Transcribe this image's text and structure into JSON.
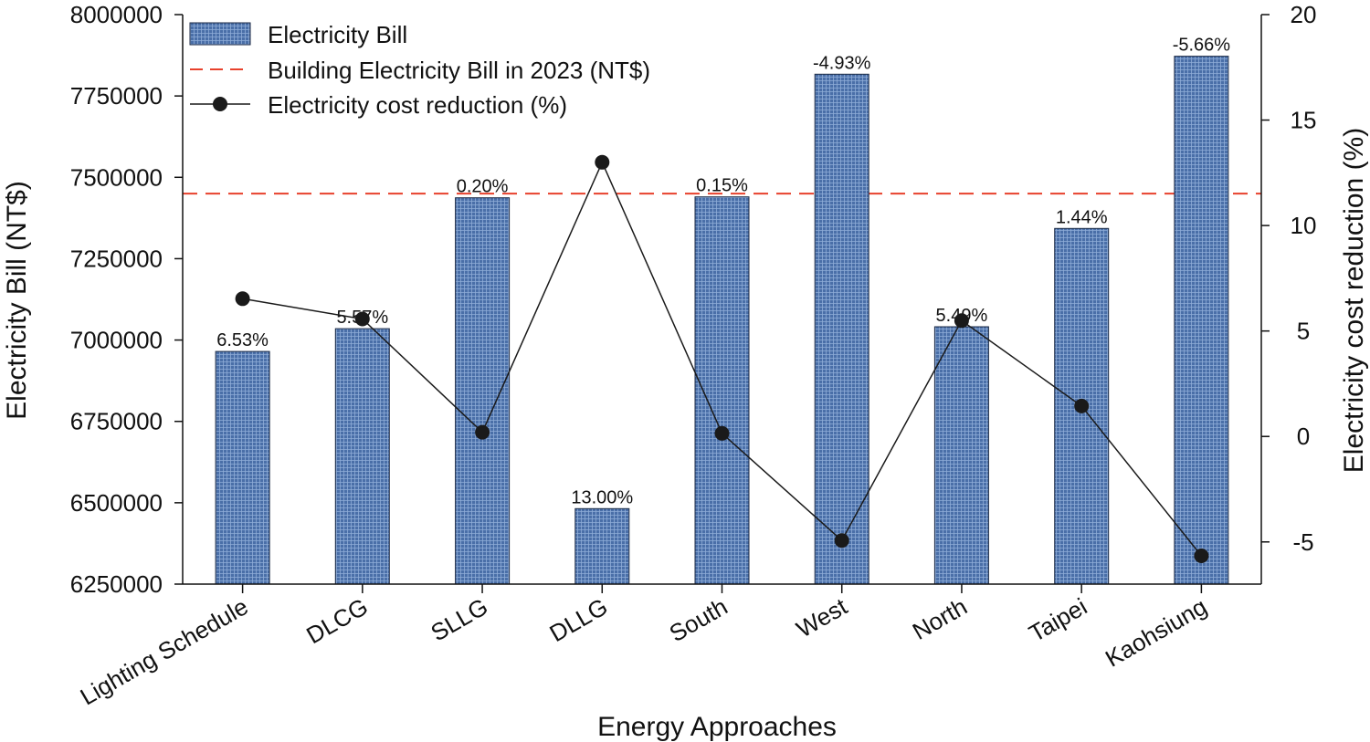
{
  "chart_data": {
    "type": "bar",
    "xlabel": "Energy Approaches",
    "ylabel": "Electricity Bill (NT$)",
    "y2label": "Electricity cost reduction (%)",
    "categories": [
      "Lighting Schedule",
      "DLCG",
      "SLLG",
      "DLLG",
      "South",
      "West",
      "North",
      "Taipei",
      "Kaohsiung"
    ],
    "ylim": [
      6250000,
      8000000
    ],
    "yticks": [
      "6250000",
      "6500000",
      "6750000",
      "7000000",
      "7250000",
      "7500000",
      "7750000",
      "8000000"
    ],
    "y2lim": [
      -7,
      20
    ],
    "y2ticks": [
      "-5",
      "0",
      "5",
      "10",
      "15",
      "20"
    ],
    "series": [
      {
        "name": "Electricity Bill",
        "type": "bar",
        "axis": "left",
        "values": [
          6965000,
          7035000,
          7437000,
          6482000,
          7440000,
          7817000,
          7041000,
          7343000,
          7872000
        ],
        "labels": [
          "6.53%",
          "5.57%",
          "0.20%",
          "13.00%",
          "0.15%",
          "-4.93%",
          "5.49%",
          "1.44%",
          "-5.66%"
        ]
      },
      {
        "name": "Electricity cost reduction (%)",
        "type": "line",
        "axis": "right",
        "values": [
          6.53,
          5.57,
          0.2,
          13.0,
          0.15,
          -4.93,
          5.49,
          1.44,
          -5.66
        ]
      }
    ],
    "reference_line": {
      "name": "Building Electricity Bill in 2023 (NT$)",
      "value": 7450000,
      "axis": "left"
    },
    "legend": {
      "position": "top-left",
      "items": [
        "Electricity Bill",
        "Building Electricity Bill in 2023 (NT$)",
        "Electricity cost reduction (%)"
      ]
    },
    "colors": {
      "bar": "#4a6fa8",
      "bar_grid": "#89a8d4",
      "bar_edge": "#1c2a44",
      "line": "#1a1a1a",
      "reference": "#e8412c"
    }
  }
}
